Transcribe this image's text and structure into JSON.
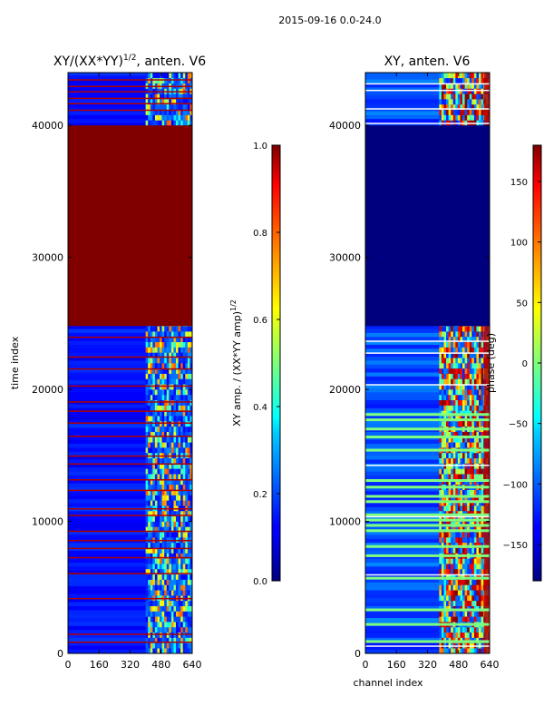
{
  "figure": {
    "suptitle": "2015-09-16 0.0-24.0"
  },
  "chart_data": [
    {
      "type": "heatmap",
      "title_prefix": "XY/(XX*YY)",
      "title_sup": "1/2",
      "title_suffix": ", anten. V6",
      "xlabel": "",
      "ylabel": "time index",
      "x_range": [
        0,
        640
      ],
      "y_range": [
        0,
        44000
      ],
      "x_ticks": [
        0,
        160,
        320,
        480,
        640
      ],
      "y_ticks": [
        0,
        10000,
        20000,
        30000,
        40000
      ],
      "colorbar": {
        "label_prefix": "XY amp. / (XX*YY amp)",
        "label_sup": "1/2",
        "range": [
          0.0,
          1.0
        ],
        "ticks": [
          "0.0",
          "0.2",
          "0.4",
          "0.6",
          "0.8",
          "1.0"
        ]
      }
    },
    {
      "type": "heatmap",
      "title": "XY, anten. V6",
      "xlabel": "channel index",
      "ylabel": "",
      "x_range": [
        0,
        640
      ],
      "y_range": [
        0,
        44000
      ],
      "x_ticks": [
        0,
        160,
        320,
        480,
        640
      ],
      "y_ticks": [
        0,
        10000,
        20000,
        30000,
        40000
      ],
      "colorbar": {
        "label": "phase (deg)",
        "range": [
          -180,
          180
        ],
        "ticks": [
          "150",
          "100",
          "50",
          "0",
          "−50",
          "−100",
          "−150"
        ]
      }
    }
  ],
  "colors": {
    "jet_dark_red": "#800000",
    "jet_dark_blue": "#00007f",
    "jet_blue": "#1e3cff",
    "frame": "#000000",
    "background": "#ffffff"
  }
}
